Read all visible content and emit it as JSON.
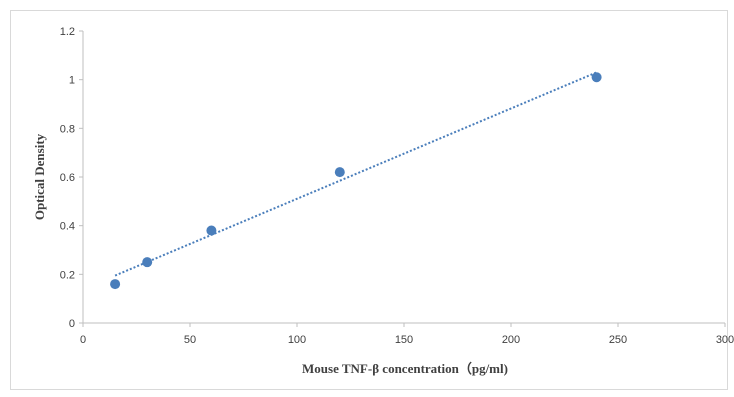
{
  "chart_data": {
    "type": "scatter",
    "title": "",
    "xlabel": "Mouse TNF-β concentration（pg/ml)",
    "ylabel": "Optical Density",
    "xlim": [
      0,
      300
    ],
    "ylim": [
      0,
      1.2
    ],
    "x_ticks": [
      "0",
      "50",
      "100",
      "150",
      "200",
      "250",
      "300"
    ],
    "y_ticks": [
      "0",
      "0.2",
      "0.4",
      "0.6",
      "0.8",
      "1",
      "1.2"
    ],
    "grid": false,
    "legend": "none",
    "series": [
      {
        "x": [
          15,
          30,
          60,
          120,
          240
        ],
        "y": [
          0.16,
          0.25,
          0.38,
          0.62,
          1.01
        ],
        "marker_color": "#4a7ebb"
      }
    ],
    "trendline": {
      "style": "dotted",
      "color": "#4a7ebb",
      "from": [
        15,
        0.195
      ],
      "to": [
        240,
        1.03
      ]
    }
  }
}
